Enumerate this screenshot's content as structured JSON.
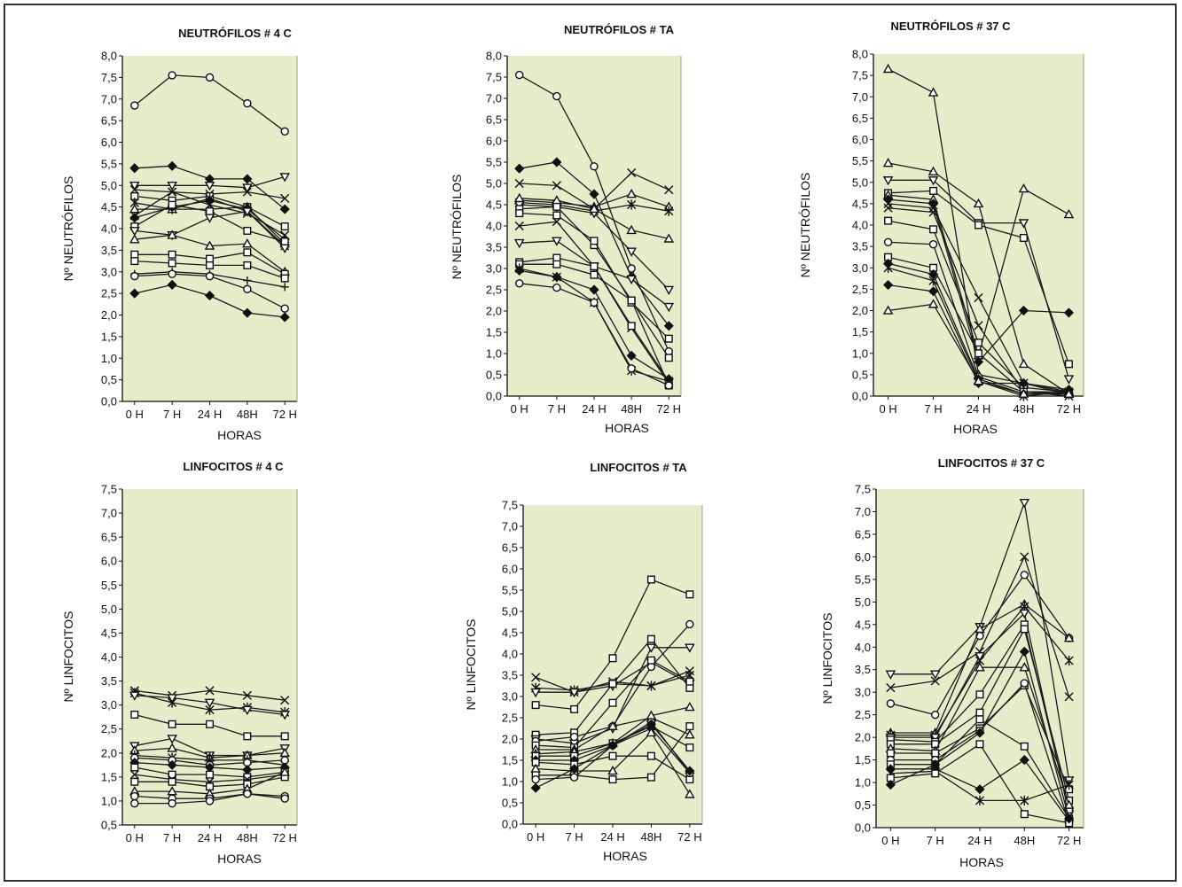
{
  "chart_data": [
    {
      "type": "line",
      "title": "NEUTRÓFILOS # 4 C",
      "xlabel": "HORAS",
      "ylabel": "Nº NEUTRÓFILOS",
      "categories": [
        "0 H",
        "7 H",
        "24 H",
        "48H",
        "72 H"
      ],
      "ylim": [
        0,
        8
      ],
      "yticks": [
        "0,0",
        "0,5",
        "1,0",
        "1,5",
        "2,0",
        "2,5",
        "3,0",
        "3,5",
        "4,0",
        "4,5",
        "5,0",
        "5,5",
        "6,0",
        "6,5",
        "7,0",
        "7,5",
        "8,0"
      ],
      "series": [
        {
          "values": [
            6.85,
            7.55,
            7.5,
            6.9,
            6.25
          ],
          "marker": "circle"
        },
        {
          "values": [
            5.4,
            5.45,
            5.15,
            5.15,
            4.45
          ],
          "marker": "diamond"
        },
        {
          "values": [
            5.0,
            5.0,
            5.0,
            4.95,
            5.2
          ],
          "marker": "tri-down"
        },
        {
          "values": [
            4.9,
            4.85,
            4.8,
            4.85,
            4.7
          ],
          "marker": "x"
        },
        {
          "values": [
            4.75,
            4.65,
            4.75,
            4.5,
            4.05
          ],
          "marker": "square"
        },
        {
          "values": [
            4.6,
            4.45,
            4.7,
            4.4,
            3.6
          ],
          "marker": "star"
        },
        {
          "values": [
            4.45,
            4.45,
            4.45,
            4.5,
            3.65
          ],
          "marker": "triangle"
        },
        {
          "values": [
            4.3,
            4.85,
            4.55,
            4.35,
            3.85
          ],
          "marker": "x"
        },
        {
          "values": [
            4.25,
            4.5,
            4.65,
            4.45,
            3.75
          ],
          "marker": "diamond"
        },
        {
          "values": [
            4.05,
            4.55,
            4.4,
            3.95,
            3.7
          ],
          "marker": "square"
        },
        {
          "values": [
            3.95,
            3.85,
            4.25,
            4.4,
            3.55
          ],
          "marker": "tri-down"
        },
        {
          "values": [
            3.75,
            3.85,
            3.6,
            3.65,
            3.0
          ],
          "marker": "triangle"
        },
        {
          "values": [
            3.4,
            3.4,
            3.3,
            3.45,
            2.95
          ],
          "marker": "square"
        },
        {
          "values": [
            3.25,
            3.2,
            3.15,
            3.15,
            2.85
          ],
          "marker": "square"
        },
        {
          "values": [
            2.95,
            3.0,
            2.95,
            2.8,
            2.65
          ],
          "marker": "plus"
        },
        {
          "values": [
            2.9,
            2.95,
            2.9,
            2.6,
            2.15
          ],
          "marker": "circle"
        },
        {
          "values": [
            2.5,
            2.7,
            2.45,
            2.05,
            1.95
          ],
          "marker": "diamond"
        }
      ]
    },
    {
      "type": "line",
      "title": "NEUTRÓFILOS # TA",
      "xlabel": "HORAS",
      "ylabel": "Nº NEUTRÓFILOS",
      "categories": [
        "0 H",
        "7 H",
        "24 H",
        "48H",
        "72 H"
      ],
      "ylim": [
        0,
        8
      ],
      "yticks": [
        "0,0",
        "0,5",
        "1,0",
        "1,5",
        "2,0",
        "2,5",
        "3,0",
        "3,5",
        "4,0",
        "4,5",
        "5,0",
        "5,5",
        "6,0",
        "6,5",
        "7,0",
        "7,5",
        "8,0"
      ],
      "series": [
        {
          "values": [
            7.55,
            7.05,
            5.4,
            3.0,
            1.05
          ],
          "marker": "circle"
        },
        {
          "values": [
            5.35,
            5.5,
            4.75,
            2.8,
            1.65
          ],
          "marker": "diamond"
        },
        {
          "values": [
            5.0,
            4.95,
            4.4,
            5.25,
            4.85
          ],
          "marker": "x"
        },
        {
          "values": [
            4.6,
            4.55,
            4.45,
            4.75,
            4.45
          ],
          "marker": "triangle"
        },
        {
          "values": [
            4.55,
            4.5,
            4.35,
            4.5,
            4.35
          ],
          "marker": "star"
        },
        {
          "values": [
            4.5,
            4.45,
            4.3,
            3.4,
            2.5
          ],
          "marker": "tri-down"
        },
        {
          "values": [
            4.65,
            4.6,
            4.4,
            3.9,
            3.7
          ],
          "marker": "triangle"
        },
        {
          "values": [
            4.4,
            4.45,
            3.55,
            2.25,
            0.25
          ],
          "marker": "square"
        },
        {
          "values": [
            4.3,
            4.25,
            3.65,
            2.2,
            1.35
          ],
          "marker": "square"
        },
        {
          "values": [
            4.0,
            4.1,
            3.05,
            1.6,
            0.3
          ],
          "marker": "x"
        },
        {
          "values": [
            3.6,
            3.65,
            3.05,
            2.75,
            2.1
          ],
          "marker": "tri-down"
        },
        {
          "values": [
            3.15,
            3.25,
            3.05,
            1.65,
            0.35
          ],
          "marker": "square"
        },
        {
          "values": [
            3.1,
            3.1,
            2.85,
            2.25,
            0.9
          ],
          "marker": "square"
        },
        {
          "values": [
            3.0,
            2.8,
            2.2,
            0.6,
            0.35
          ],
          "marker": "star"
        },
        {
          "values": [
            2.95,
            2.8,
            2.5,
            0.95,
            0.4
          ],
          "marker": "diamond"
        },
        {
          "values": [
            2.65,
            2.55,
            2.2,
            0.65,
            0.25
          ],
          "marker": "circle"
        }
      ]
    },
    {
      "type": "line",
      "title": "NEUTRÓFILOS # 37 C",
      "xlabel": "HORAS",
      "ylabel": "Nº NEUTRÓFILOS",
      "categories": [
        "0 H",
        "7 H",
        "24 H",
        "48H",
        "72 H"
      ],
      "ylim": [
        0,
        8
      ],
      "yticks": [
        "0,0",
        "0,5",
        "1,0",
        "1,5",
        "2,0",
        "2,5",
        "3,0",
        "3,5",
        "4,0",
        "4,5",
        "5,0",
        "5,5",
        "6,0",
        "6,5",
        "7,0",
        "7,5",
        "8,0"
      ],
      "series": [
        {
          "values": [
            7.65,
            7.1,
            0.5,
            0.3,
            0.1
          ],
          "marker": "triangle"
        },
        {
          "values": [
            5.45,
            5.25,
            4.5,
            0.75,
            0.05
          ],
          "marker": "triangle"
        },
        {
          "values": [
            5.05,
            5.05,
            4.05,
            4.05,
            0.4
          ],
          "marker": "tri-down"
        },
        {
          "values": [
            4.75,
            4.8,
            4.0,
            3.7,
            0.75
          ],
          "marker": "square"
        },
        {
          "values": [
            4.7,
            4.6,
            0.95,
            4.85,
            4.25
          ],
          "marker": "triangle"
        },
        {
          "values": [
            4.6,
            4.5,
            0.8,
            2.0,
            1.95
          ],
          "marker": "diamond"
        },
        {
          "values": [
            4.5,
            4.4,
            2.3,
            0.3,
            0.05
          ],
          "marker": "x"
        },
        {
          "values": [
            4.4,
            4.3,
            1.65,
            0.1,
            0.0
          ],
          "marker": "x"
        },
        {
          "values": [
            4.1,
            3.9,
            1.25,
            0.2,
            0.1
          ],
          "marker": "square"
        },
        {
          "values": [
            3.6,
            3.55,
            0.45,
            0.1,
            0.05
          ],
          "marker": "circle"
        },
        {
          "values": [
            3.25,
            3.0,
            1.0,
            0.1,
            0.1
          ],
          "marker": "square"
        },
        {
          "values": [
            3.1,
            2.85,
            0.4,
            0.05,
            0.05
          ],
          "marker": "diamond"
        },
        {
          "values": [
            3.0,
            2.7,
            0.35,
            0.0,
            0.1
          ],
          "marker": "star"
        },
        {
          "values": [
            2.6,
            2.45,
            0.3,
            0.3,
            0.15
          ],
          "marker": "diamond"
        },
        {
          "values": [
            2.0,
            2.15,
            0.35,
            0.05,
            0.05
          ],
          "marker": "triangle"
        }
      ]
    },
    {
      "type": "line",
      "title": "LINFOCITOS # 4 C",
      "xlabel": "HORAS",
      "ylabel": "Nº LINFOCITOS",
      "categories": [
        "0 H",
        "7 H",
        "24 H",
        "48H",
        "72 H"
      ],
      "ylim": [
        0.5,
        7.5
      ],
      "yticks": [
        "0,5",
        "1,0",
        "1,5",
        "2,0",
        "2,5",
        "3,0",
        "3,5",
        "4,0",
        "4,5",
        "5,0",
        "5,5",
        "6,0",
        "6,5",
        "7,0",
        "7,5"
      ],
      "series": [
        {
          "values": [
            3.3,
            3.2,
            3.3,
            3.2,
            3.1
          ],
          "marker": "x"
        },
        {
          "values": [
            3.25,
            3.05,
            2.9,
            2.95,
            2.85
          ],
          "marker": "star"
        },
        {
          "values": [
            3.2,
            3.15,
            3.05,
            2.9,
            2.8
          ],
          "marker": "tri-down"
        },
        {
          "values": [
            2.8,
            2.6,
            2.6,
            2.35,
            2.35
          ],
          "marker": "square"
        },
        {
          "values": [
            2.15,
            2.3,
            1.95,
            1.95,
            2.1
          ],
          "marker": "tri-down"
        },
        {
          "values": [
            2.05,
            2.1,
            1.9,
            1.95,
            2.0
          ],
          "marker": "triangle"
        },
        {
          "values": [
            1.95,
            1.9,
            1.85,
            1.85,
            1.75
          ],
          "marker": "star"
        },
        {
          "values": [
            1.9,
            1.85,
            1.75,
            1.8,
            1.85
          ],
          "marker": "circle"
        },
        {
          "values": [
            1.8,
            1.75,
            1.7,
            1.65,
            1.7
          ],
          "marker": "diamond"
        },
        {
          "values": [
            1.7,
            1.55,
            1.55,
            1.5,
            1.6
          ],
          "marker": "square"
        },
        {
          "values": [
            1.55,
            1.45,
            1.4,
            1.45,
            1.55
          ],
          "marker": "x"
        },
        {
          "values": [
            1.4,
            1.4,
            1.3,
            1.35,
            1.5
          ],
          "marker": "square"
        },
        {
          "values": [
            1.2,
            1.2,
            1.15,
            1.25,
            1.6
          ],
          "marker": "triangle"
        },
        {
          "values": [
            1.1,
            1.05,
            1.05,
            1.15,
            1.1
          ],
          "marker": "circle"
        },
        {
          "values": [
            0.95,
            0.95,
            1.0,
            1.15,
            1.05
          ],
          "marker": "circle"
        }
      ]
    },
    {
      "type": "line",
      "title": "LINFOCITOS # TA",
      "xlabel": "HORAS",
      "ylabel": "Nº LINFOCITOS",
      "categories": [
        "0 H",
        "7 H",
        "24 H",
        "48H",
        "72 H"
      ],
      "ylim": [
        0,
        7.5
      ],
      "yticks": [
        "0,0",
        "0,5",
        "1,0",
        "1,5",
        "2,0",
        "2,5",
        "3,0",
        "3,5",
        "4,0",
        "4,5",
        "5,0",
        "5,5",
        "6,0",
        "6,5",
        "7,0",
        "7,5"
      ],
      "series": [
        {
          "values": [
            3.45,
            3.1,
            3.35,
            3.25,
            3.6
          ],
          "marker": "x"
        },
        {
          "values": [
            3.2,
            3.15,
            3.3,
            3.25,
            3.5
          ],
          "marker": "star"
        },
        {
          "values": [
            3.1,
            3.1,
            3.25,
            3.8,
            3.3
          ],
          "marker": "tri-down"
        },
        {
          "values": [
            2.8,
            2.7,
            3.9,
            5.75,
            5.4
          ],
          "marker": "square"
        },
        {
          "values": [
            2.1,
            2.15,
            3.3,
            4.35,
            3.2
          ],
          "marker": "square"
        },
        {
          "values": [
            2.0,
            1.9,
            2.25,
            4.15,
            4.15
          ],
          "marker": "tri-down"
        },
        {
          "values": [
            1.95,
            2.05,
            2.3,
            3.7,
            4.7
          ],
          "marker": "circle"
        },
        {
          "values": [
            1.85,
            1.8,
            2.85,
            3.85,
            3.35
          ],
          "marker": "square"
        },
        {
          "values": [
            1.75,
            1.75,
            2.3,
            2.5,
            2.1
          ],
          "marker": "triangle"
        },
        {
          "values": [
            1.65,
            1.7,
            1.9,
            2.55,
            2.75
          ],
          "marker": "triangle"
        },
        {
          "values": [
            1.6,
            1.6,
            1.9,
            2.3,
            1.8
          ],
          "marker": "square"
        },
        {
          "values": [
            1.5,
            1.5,
            1.85,
            2.25,
            1.2
          ],
          "marker": "diamond"
        },
        {
          "values": [
            1.45,
            1.4,
            1.6,
            1.6,
            1.05
          ],
          "marker": "square"
        },
        {
          "values": [
            1.3,
            1.25,
            1.25,
            2.15,
            0.7
          ],
          "marker": "triangle"
        },
        {
          "values": [
            1.15,
            1.15,
            1.05,
            1.1,
            2.3
          ],
          "marker": "square"
        },
        {
          "values": [
            1.05,
            1.1,
            1.85,
            2.4,
            1.2
          ],
          "marker": "circle"
        },
        {
          "values": [
            0.85,
            1.3,
            1.85,
            2.35,
            1.25
          ],
          "marker": "diamond"
        }
      ]
    },
    {
      "type": "line",
      "title": "LINFOCITOS # 37 C",
      "xlabel": "HORAS",
      "ylabel": "Nº LINFOCITOS",
      "categories": [
        "0 H",
        "7 H",
        "24 H",
        "48H",
        "72 H"
      ],
      "ylim": [
        0,
        7.5
      ],
      "yticks": [
        "0,0",
        "0,5",
        "1,0",
        "1,5",
        "2,0",
        "2,5",
        "3,0",
        "3,5",
        "4,0",
        "4,5",
        "5,0",
        "5,5",
        "6,0",
        "6,5",
        "7,0",
        "7,5"
      ],
      "series": [
        {
          "values": [
            3.4,
            3.4,
            4.45,
            7.2,
            1.05
          ],
          "marker": "tri-down"
        },
        {
          "values": [
            3.1,
            3.25,
            3.9,
            6.0,
            2.9
          ],
          "marker": "x"
        },
        {
          "values": [
            2.75,
            2.5,
            4.25,
            5.6,
            4.2
          ],
          "marker": "circle"
        },
        {
          "values": [
            2.1,
            2.1,
            4.4,
            4.95,
            4.2
          ],
          "marker": "triangle"
        },
        {
          "values": [
            2.05,
            2.05,
            3.7,
            4.9,
            3.7
          ],
          "marker": "star"
        },
        {
          "values": [
            2.0,
            2.0,
            3.8,
            4.75,
            0.3
          ],
          "marker": "tri-down"
        },
        {
          "values": [
            1.95,
            1.9,
            2.95,
            4.5,
            0.4
          ],
          "marker": "square"
        },
        {
          "values": [
            1.85,
            1.85,
            2.55,
            4.4,
            0.6
          ],
          "marker": "square"
        },
        {
          "values": [
            1.75,
            1.7,
            3.55,
            3.55,
            0.5
          ],
          "marker": "triangle"
        },
        {
          "values": [
            1.65,
            1.65,
            2.2,
            3.15,
            0.85
          ],
          "marker": "square"
        },
        {
          "values": [
            1.5,
            1.5,
            2.15,
            3.2,
            0.1
          ],
          "marker": "circle"
        },
        {
          "values": [
            1.4,
            1.4,
            2.4,
            1.8,
            0.2
          ],
          "marker": "square"
        },
        {
          "values": [
            1.3,
            1.3,
            0.85,
            1.5,
            0.15
          ],
          "marker": "diamond"
        },
        {
          "values": [
            1.2,
            1.25,
            0.6,
            0.6,
            0.95
          ],
          "marker": "star"
        },
        {
          "values": [
            1.1,
            1.2,
            1.85,
            0.3,
            0.1
          ],
          "marker": "square"
        },
        {
          "values": [
            0.95,
            1.4,
            2.1,
            3.9,
            0.2
          ],
          "marker": "diamond"
        }
      ]
    }
  ]
}
